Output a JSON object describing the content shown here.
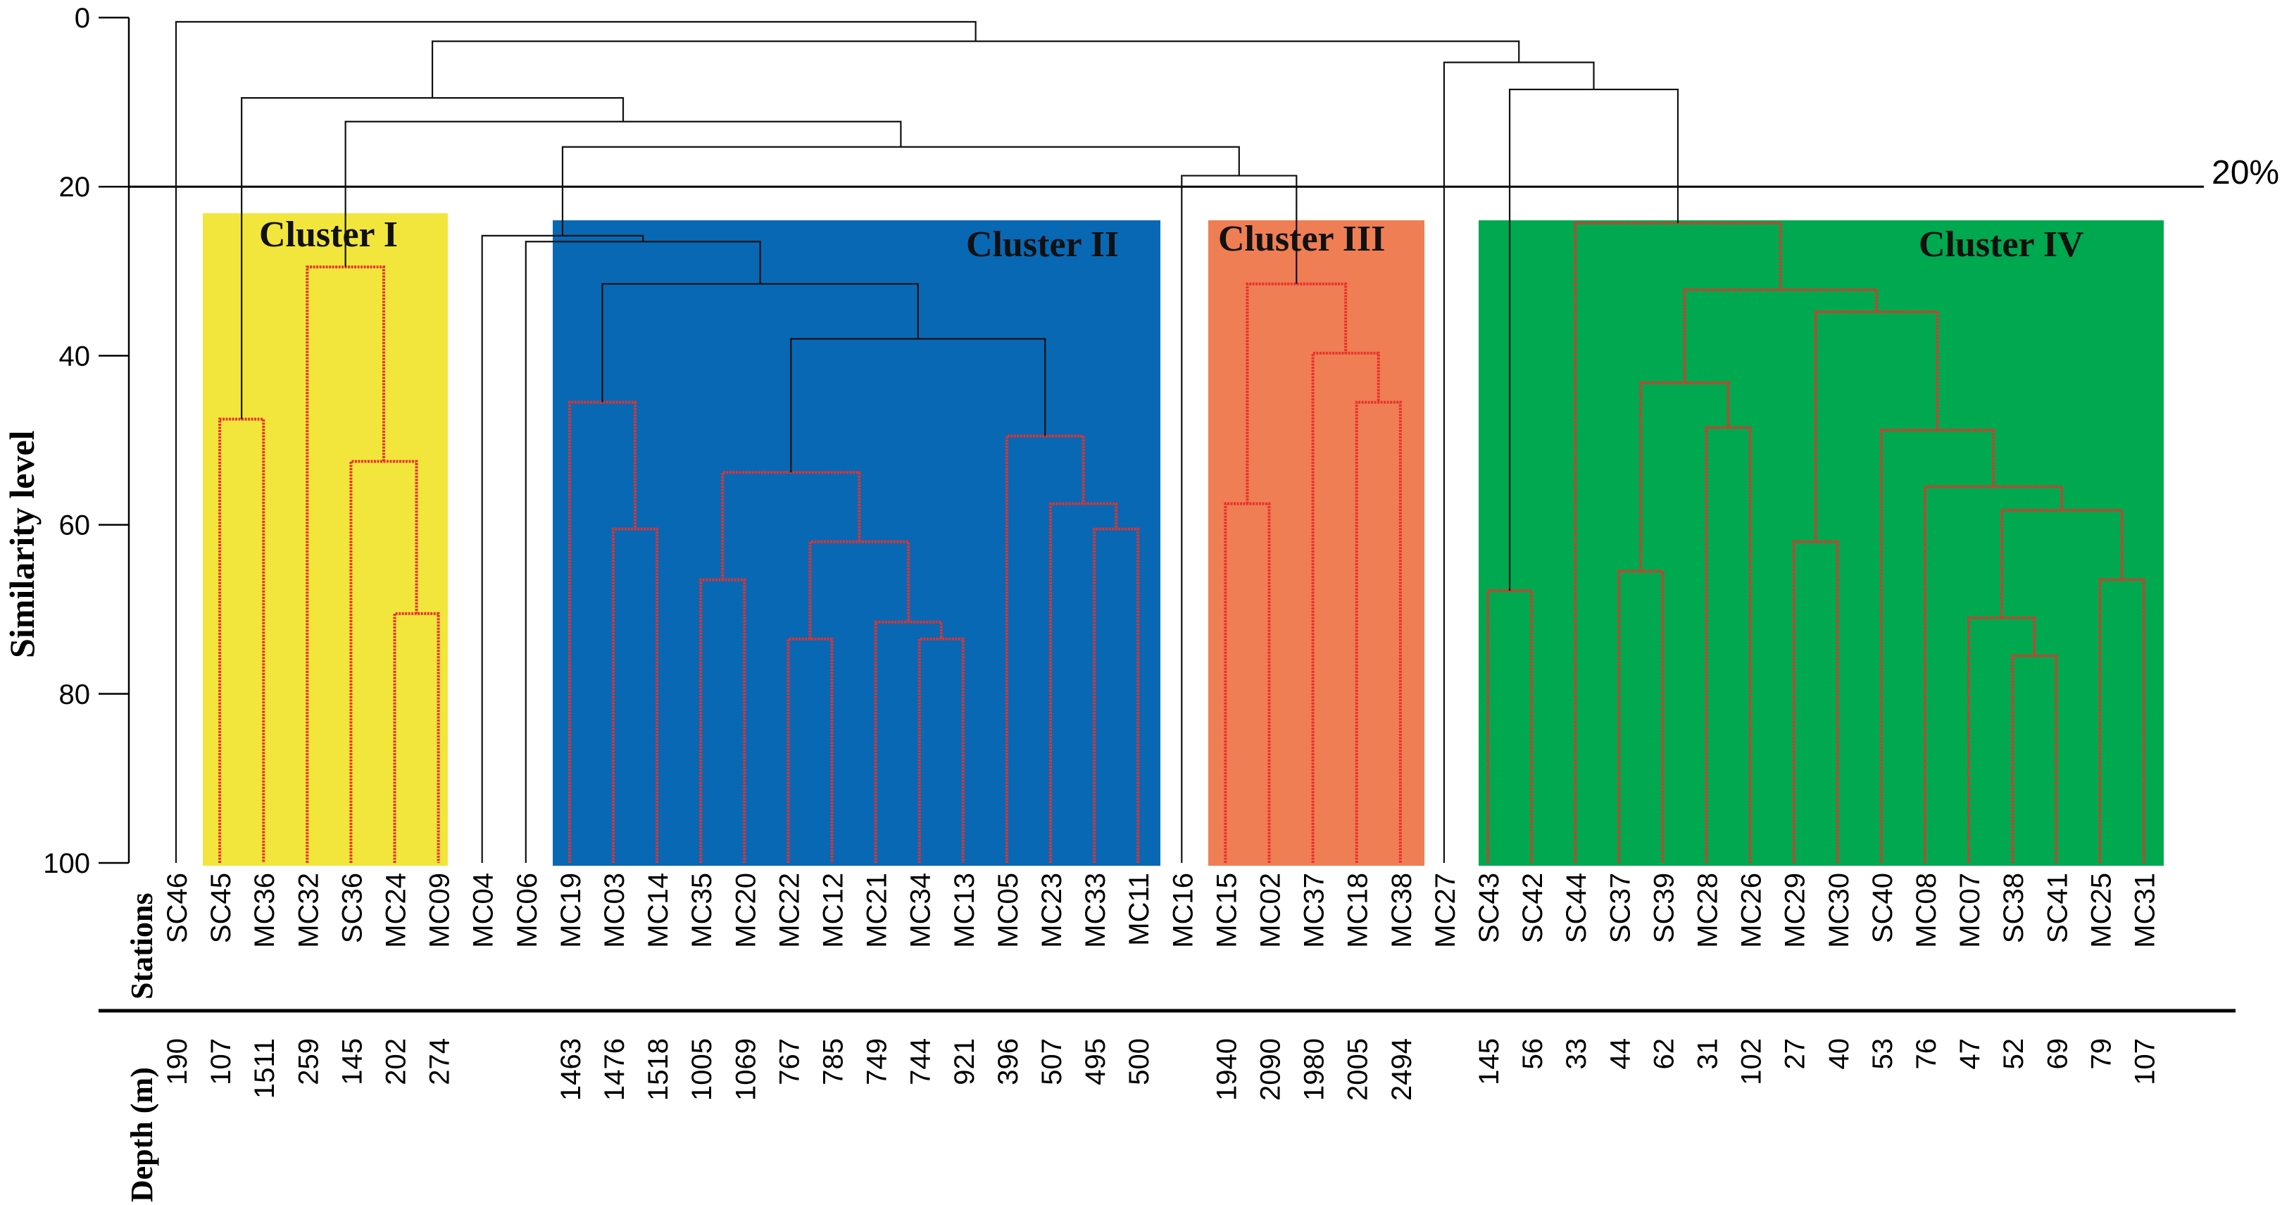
{
  "y_axis": {
    "label": "Similarity level",
    "ticks": [
      "0",
      "20",
      "40",
      "60",
      "80",
      "100"
    ]
  },
  "threshold": {
    "value": 20,
    "label": "20%"
  },
  "rows": {
    "stations_label": "Stations",
    "depth_label": "Depth (m)"
  },
  "stations": [
    "SC46",
    "SC45",
    "MC36",
    "MC32",
    "SC36",
    "MC24",
    "MC09",
    "MC04",
    "MC06",
    "MC19",
    "MC03",
    "MC14",
    "MC35",
    "MC20",
    "MC22",
    "MC12",
    "MC21",
    "MC34",
    "MC13",
    "MC05",
    "MC23",
    "MC33",
    "MC11",
    "MC16",
    "MC15",
    "MC02",
    "MC37",
    "MC18",
    "MC38",
    "MC27",
    "SC43",
    "SC42",
    "SC44",
    "SC37",
    "SC39",
    "MC28",
    "MC26",
    "MC29",
    "MC30",
    "SC40",
    "MC08",
    "MC07",
    "SC38",
    "SC41",
    "MC25",
    "MC31"
  ],
  "depths": [
    "190",
    "107",
    "1511",
    "259",
    "145",
    "202",
    "274",
    "",
    "",
    "1463",
    "1476",
    "1518",
    "1005",
    "1069",
    "767",
    "785",
    "749",
    "744",
    "921",
    "396",
    "507",
    "495",
    "500",
    "",
    "1940",
    "2090",
    "1980",
    "2005",
    "2494",
    "",
    "145",
    "56",
    "33",
    "44",
    "62",
    "31",
    "102",
    "27",
    "40",
    "53",
    "76",
    "47",
    "52",
    "69",
    "79",
    "107"
  ],
  "clusters": [
    {
      "label": "Cluster I",
      "color": "#f2e63c"
    },
    {
      "label": "Cluster II",
      "color": "#0868b4"
    },
    {
      "label": "Cluster III",
      "color": "#ef7e54"
    },
    {
      "label": "Cluster IV",
      "color": "#00a84f"
    }
  ],
  "colors": {
    "branch_black": "#111111",
    "branch_red": "#e8312a"
  },
  "merges": [
    {
      "a": "SC45",
      "b": "MC36",
      "h": 47.5,
      "red": true
    },
    {
      "a": "MC24",
      "b": "MC09",
      "h": 70.5,
      "red": true
    },
    {
      "a": "SC36",
      "b": "n2",
      "h": 52.5,
      "red": true
    },
    {
      "a": "MC32",
      "b": "n3",
      "h": 29.5,
      "red": true
    },
    {
      "a": "MC03",
      "b": "MC14",
      "h": 60.5,
      "red": true
    },
    {
      "a": "MC19",
      "b": "n5",
      "h": 45.5,
      "red": true
    },
    {
      "a": "MC35",
      "b": "MC20",
      "h": 66.5,
      "red": true
    },
    {
      "a": "MC22",
      "b": "MC12",
      "h": 73.5,
      "red": true
    },
    {
      "a": "MC34",
      "b": "MC13",
      "h": 73.5,
      "red": true
    },
    {
      "a": "MC21",
      "b": "n9",
      "h": 71.5,
      "red": true
    },
    {
      "a": "n8",
      "b": "n10",
      "h": 62.0,
      "red": true
    },
    {
      "a": "n7",
      "b": "n11",
      "h": 53.8,
      "red": true
    },
    {
      "a": "MC33",
      "b": "MC11",
      "h": 60.5,
      "red": true
    },
    {
      "a": "MC23",
      "b": "n13",
      "h": 57.5,
      "red": true
    },
    {
      "a": "MC05",
      "b": "n14",
      "h": 49.5,
      "red": true
    },
    {
      "a": "n12",
      "b": "n15",
      "h": 38.0,
      "red": false
    },
    {
      "a": "n6",
      "b": "n16",
      "h": 31.5,
      "red": false
    },
    {
      "a": "MC06",
      "b": "n17",
      "h": 26.5,
      "red": false
    },
    {
      "a": "MC04",
      "b": "n18",
      "h": 25.8,
      "red": false
    },
    {
      "a": "MC15",
      "b": "MC02",
      "h": 57.5,
      "red": true
    },
    {
      "a": "MC18",
      "b": "MC38",
      "h": 45.5,
      "red": true
    },
    {
      "a": "MC37",
      "b": "n21",
      "h": 39.7,
      "red": true
    },
    {
      "a": "n20",
      "b": "n22",
      "h": 31.5,
      "red": true
    },
    {
      "a": "MC16",
      "b": "n23",
      "h": 18.7,
      "red": false
    },
    {
      "a": "n19",
      "b": "n24",
      "h": 15.3,
      "red": false
    },
    {
      "a": "n4",
      "b": "n25",
      "h": 12.3,
      "red": false
    },
    {
      "a": "n1",
      "b": "n26",
      "h": 9.5,
      "red": false
    },
    {
      "a": "SC43",
      "b": "SC42",
      "h": 67.8,
      "red": true
    },
    {
      "a": "SC37",
      "b": "SC39",
      "h": 65.5,
      "red": true
    },
    {
      "a": "MC28",
      "b": "MC26",
      "h": 48.5,
      "red": true
    },
    {
      "a": "n29",
      "b": "n30",
      "h": 43.2,
      "red": true
    },
    {
      "a": "SC38",
      "b": "SC41",
      "h": 75.5,
      "red": true
    },
    {
      "a": "MC07",
      "b": "n32",
      "h": 71.0,
      "red": true
    },
    {
      "a": "MC25",
      "b": "MC31",
      "h": 66.5,
      "red": true
    },
    {
      "a": "n33",
      "b": "n34",
      "h": 58.3,
      "red": true
    },
    {
      "a": "MC08",
      "b": "n35",
      "h": 55.5,
      "red": true
    },
    {
      "a": "SC40",
      "b": "n36",
      "h": 48.8,
      "red": true
    },
    {
      "a": "MC29",
      "b": "MC30",
      "h": 62.0,
      "red": true
    },
    {
      "a": "n38",
      "b": "n37",
      "h": 34.8,
      "red": true
    },
    {
      "a": "n31",
      "b": "n39",
      "h": 32.2,
      "red": true
    },
    {
      "a": "SC44",
      "b": "n40",
      "h": 24.3,
      "red": true
    },
    {
      "a": "n28",
      "b": "n41",
      "h": 8.5,
      "red": false
    },
    {
      "a": "MC27",
      "b": "n42",
      "h": 5.3,
      "red": false
    },
    {
      "a": "n27",
      "b": "n43",
      "h": 2.8,
      "red": false
    },
    {
      "a": "SC46",
      "b": "n44",
      "h": 0.5,
      "red": false
    }
  ]
}
